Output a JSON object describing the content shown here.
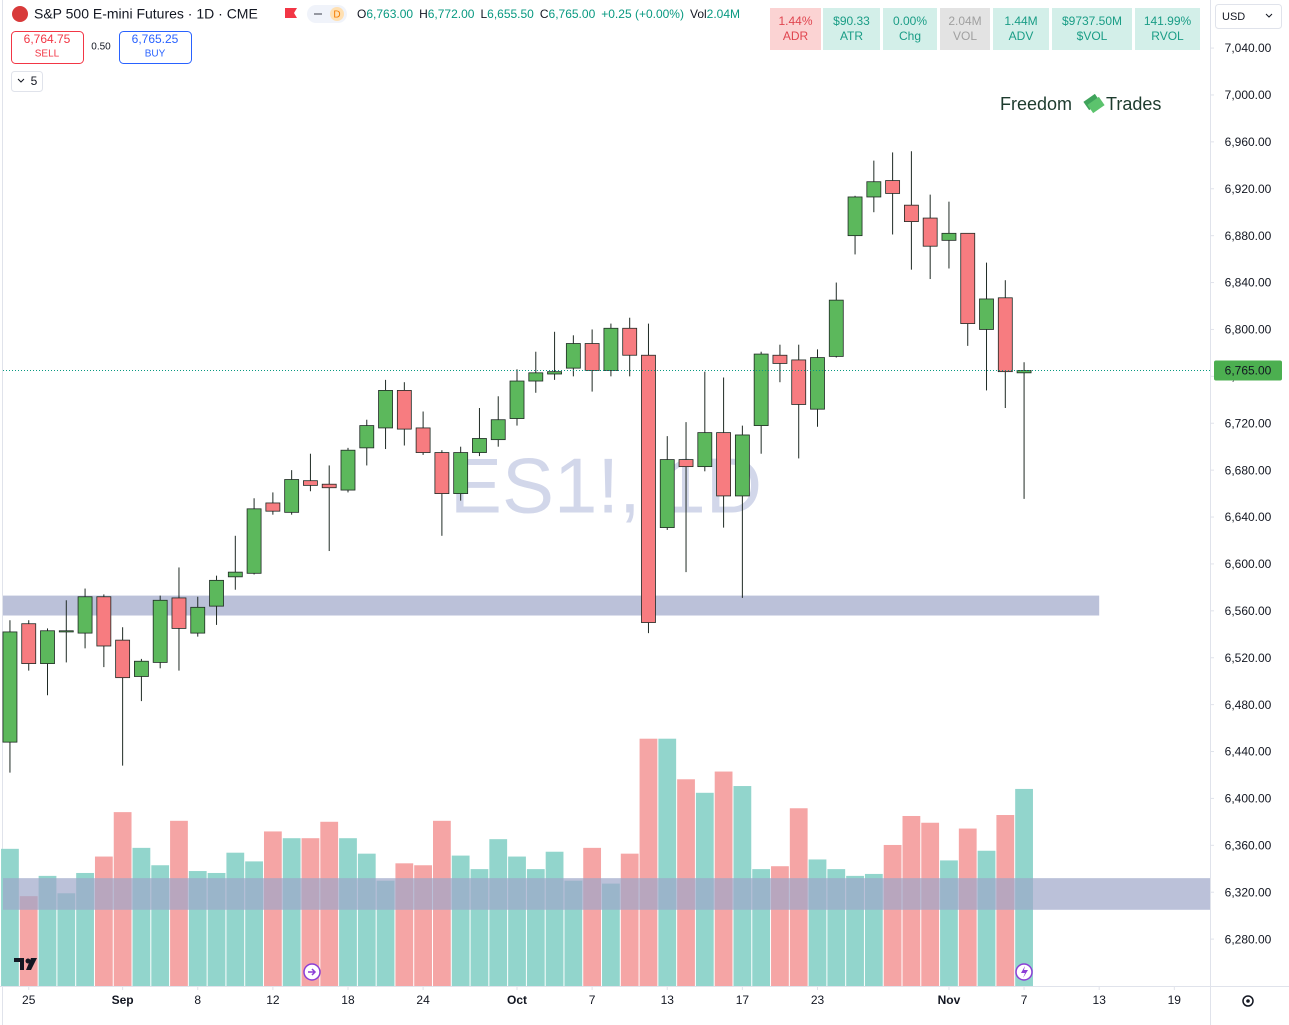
{
  "header": {
    "title": "S&P 500 E-mini Futures · 1D · CME",
    "interval": "D",
    "ohlc": [
      {
        "key": "O",
        "value": "6,763.00"
      },
      {
        "key": "H",
        "value": "6,772.00"
      },
      {
        "key": "L",
        "value": "6,655.50"
      },
      {
        "key": "C",
        "value": "6,765.00"
      }
    ],
    "change": "+0.25 (+0.00%)",
    "volume_key": "Vol",
    "volume": "2.04M",
    "sell_price": "6,764.75",
    "sell_label": "SELL",
    "spread": "0.50",
    "buy_price": "6,765.25",
    "buy_label": "BUY",
    "indicator_count": "5"
  },
  "stats": [
    {
      "value": "1.44%",
      "label": "ADR"
    },
    {
      "value": "$90.33",
      "label": "ATR"
    },
    {
      "value": "0.00%",
      "label": "Chg"
    },
    {
      "value": "2.04M",
      "label": "VOL"
    },
    {
      "value": "1.44M",
      "label": "ADV"
    },
    {
      "value": "$9737.50M",
      "label": "$VOL"
    },
    {
      "value": "141.99%",
      "label": "RVOL"
    }
  ],
  "brand": {
    "first": "Freedom",
    "second": "Trades"
  },
  "currency": "USD",
  "chart_data": {
    "type": "candlestick",
    "watermark": "ES1!, 1D",
    "up_color": "#5cb85c",
    "down_color": "#f77c80",
    "volume_up_color": "#92d5cc",
    "volume_down_color": "#f5a5a5",
    "open": [
      6448,
      6549,
      6515,
      6542,
      6541,
      6572,
      6535,
      6504,
      6516,
      6571,
      6541,
      6564,
      6589,
      6592,
      6652,
      6644,
      6671,
      6668,
      6663,
      6699,
      6716,
      6748,
      6716,
      6695,
      6660,
      6695,
      6706,
      6724,
      6756,
      6762,
      6767,
      6788,
      6765,
      6801,
      6778,
      6631,
      6689,
      6683,
      6712,
      6658,
      6718,
      6778,
      6774,
      6732,
      6777,
      6880,
      6913,
      6927,
      6906,
      6895,
      6876,
      6882,
      6800,
      6827,
      6763
    ],
    "high": [
      6552,
      6552,
      6545,
      6569,
      6579,
      6574,
      6546,
      6519,
      6573,
      6597,
      6572,
      6590,
      6624,
      6656,
      6661,
      6680,
      6694,
      6684,
      6699,
      6723,
      6757,
      6755,
      6730,
      6697,
      6700,
      6733,
      6743,
      6766,
      6781,
      6798,
      6795,
      6800,
      6805,
      6810,
      6805,
      6709,
      6721,
      6764,
      6759,
      6718,
      6781,
      6787,
      6787,
      6783,
      6840,
      6914,
      6944,
      6951,
      6952,
      6915,
      6909,
      6882,
      6857,
      6842,
      6772
    ],
    "low": [
      6422,
      6509,
      6488,
      6516,
      6528,
      6512,
      6428,
      6483,
      6511,
      6509,
      6538,
      6548,
      6578,
      6591,
      6642,
      6642,
      6662,
      6611,
      6661,
      6684,
      6698,
      6701,
      6693,
      6624,
      6654,
      6692,
      6700,
      6718,
      6746,
      6757,
      6760,
      6747,
      6760,
      6760,
      6541,
      6629,
      6593,
      6679,
      6631,
      6571,
      6694,
      6755,
      6690,
      6717,
      6776,
      6864,
      6900,
      6881,
      6851,
      6843,
      6852,
      6786,
      6748,
      6733,
      6655.5
    ],
    "close": [
      6542,
      6515,
      6543,
      6543,
      6572,
      6530,
      6503,
      6517,
      6569,
      6545,
      6563,
      6586,
      6593,
      6647,
      6645,
      6672,
      6667,
      6665,
      6697,
      6718,
      6748,
      6715,
      6695,
      6660,
      6695,
      6707,
      6723,
      6756,
      6763,
      6764,
      6788,
      6765,
      6801,
      6778,
      6550,
      6689,
      6683,
      6712,
      6658,
      6710,
      6779,
      6771,
      6736,
      6776,
      6825,
      6913,
      6926,
      6916,
      6892,
      6871,
      6882,
      6805,
      6826,
      6764,
      6765
    ],
    "volume": [
      1.42,
      0.93,
      1.14,
      0.96,
      1.17,
      1.34,
      1.8,
      1.43,
      1.25,
      1.71,
      1.19,
      1.17,
      1.38,
      1.29,
      1.6,
      1.53,
      1.53,
      1.7,
      1.53,
      1.37,
      1.09,
      1.27,
      1.25,
      1.71,
      1.35,
      1.21,
      1.52,
      1.34,
      1.21,
      1.39,
      1.09,
      1.43,
      1.06,
      1.37,
      2.56,
      2.56,
      2.14,
      2.0,
      2.22,
      2.07,
      1.21,
      1.24,
      1.84,
      1.31,
      1.21,
      1.14,
      1.16,
      1.46,
      1.76,
      1.69,
      1.3,
      1.63,
      1.4,
      1.77,
      2.04
    ],
    "xlim": [
      -0.37,
      63.9
    ],
    "xticks": [
      {
        "value": 1,
        "label": "25"
      },
      {
        "value": 6,
        "label": "Sep"
      },
      {
        "value": 10,
        "label": "8"
      },
      {
        "value": 14,
        "label": "12"
      },
      {
        "value": 18,
        "label": "18"
      },
      {
        "value": 22,
        "label": "24"
      },
      {
        "value": 27,
        "label": "Oct"
      },
      {
        "value": 31,
        "label": "7"
      },
      {
        "value": 35,
        "label": "13"
      },
      {
        "value": 39,
        "label": "17"
      },
      {
        "value": 43,
        "label": "23"
      },
      {
        "value": 50,
        "label": "Nov"
      },
      {
        "value": 54,
        "label": "7"
      },
      {
        "value": 58,
        "label": "13"
      },
      {
        "value": 62,
        "label": "19"
      }
    ],
    "ylim": [
      6240,
      7081
    ],
    "yticks": [
      {
        "value": 6280,
        "label": "6,280.00"
      },
      {
        "value": 6320,
        "label": "6,320.00"
      },
      {
        "value": 6360,
        "label": "6,360.00"
      },
      {
        "value": 6400,
        "label": "6,400.00"
      },
      {
        "value": 6440,
        "label": "6,440.00"
      },
      {
        "value": 6480,
        "label": "6,480.00"
      },
      {
        "value": 6520,
        "label": "6,520.00"
      },
      {
        "value": 6560,
        "label": "6,560.00"
      },
      {
        "value": 6600,
        "label": "6,600.00"
      },
      {
        "value": 6640,
        "label": "6,640.00"
      },
      {
        "value": 6680,
        "label": "6,680.00"
      },
      {
        "value": 6720,
        "label": "6,720.00"
      },
      {
        "value": 6760,
        "label": "6,760.00"
      },
      {
        "value": 6800,
        "label": "6,800.00"
      },
      {
        "value": 6840,
        "label": "6,840.00"
      },
      {
        "value": 6880,
        "label": "6,880.00"
      },
      {
        "value": 6920,
        "label": "6,920.00"
      },
      {
        "value": 6960,
        "label": "6,960.00"
      },
      {
        "value": 7000,
        "label": "7,000.00"
      },
      {
        "value": 7040,
        "label": "7,040.00"
      }
    ],
    "grid": false,
    "last_price": {
      "value": 6765,
      "label": "6,765.00"
    },
    "zones": [
      {
        "low": 6556,
        "high": 6573,
        "end": 58
      },
      {
        "low": 6305,
        "high": 6332
      }
    ],
    "zone_color": "#9ea6c9"
  }
}
